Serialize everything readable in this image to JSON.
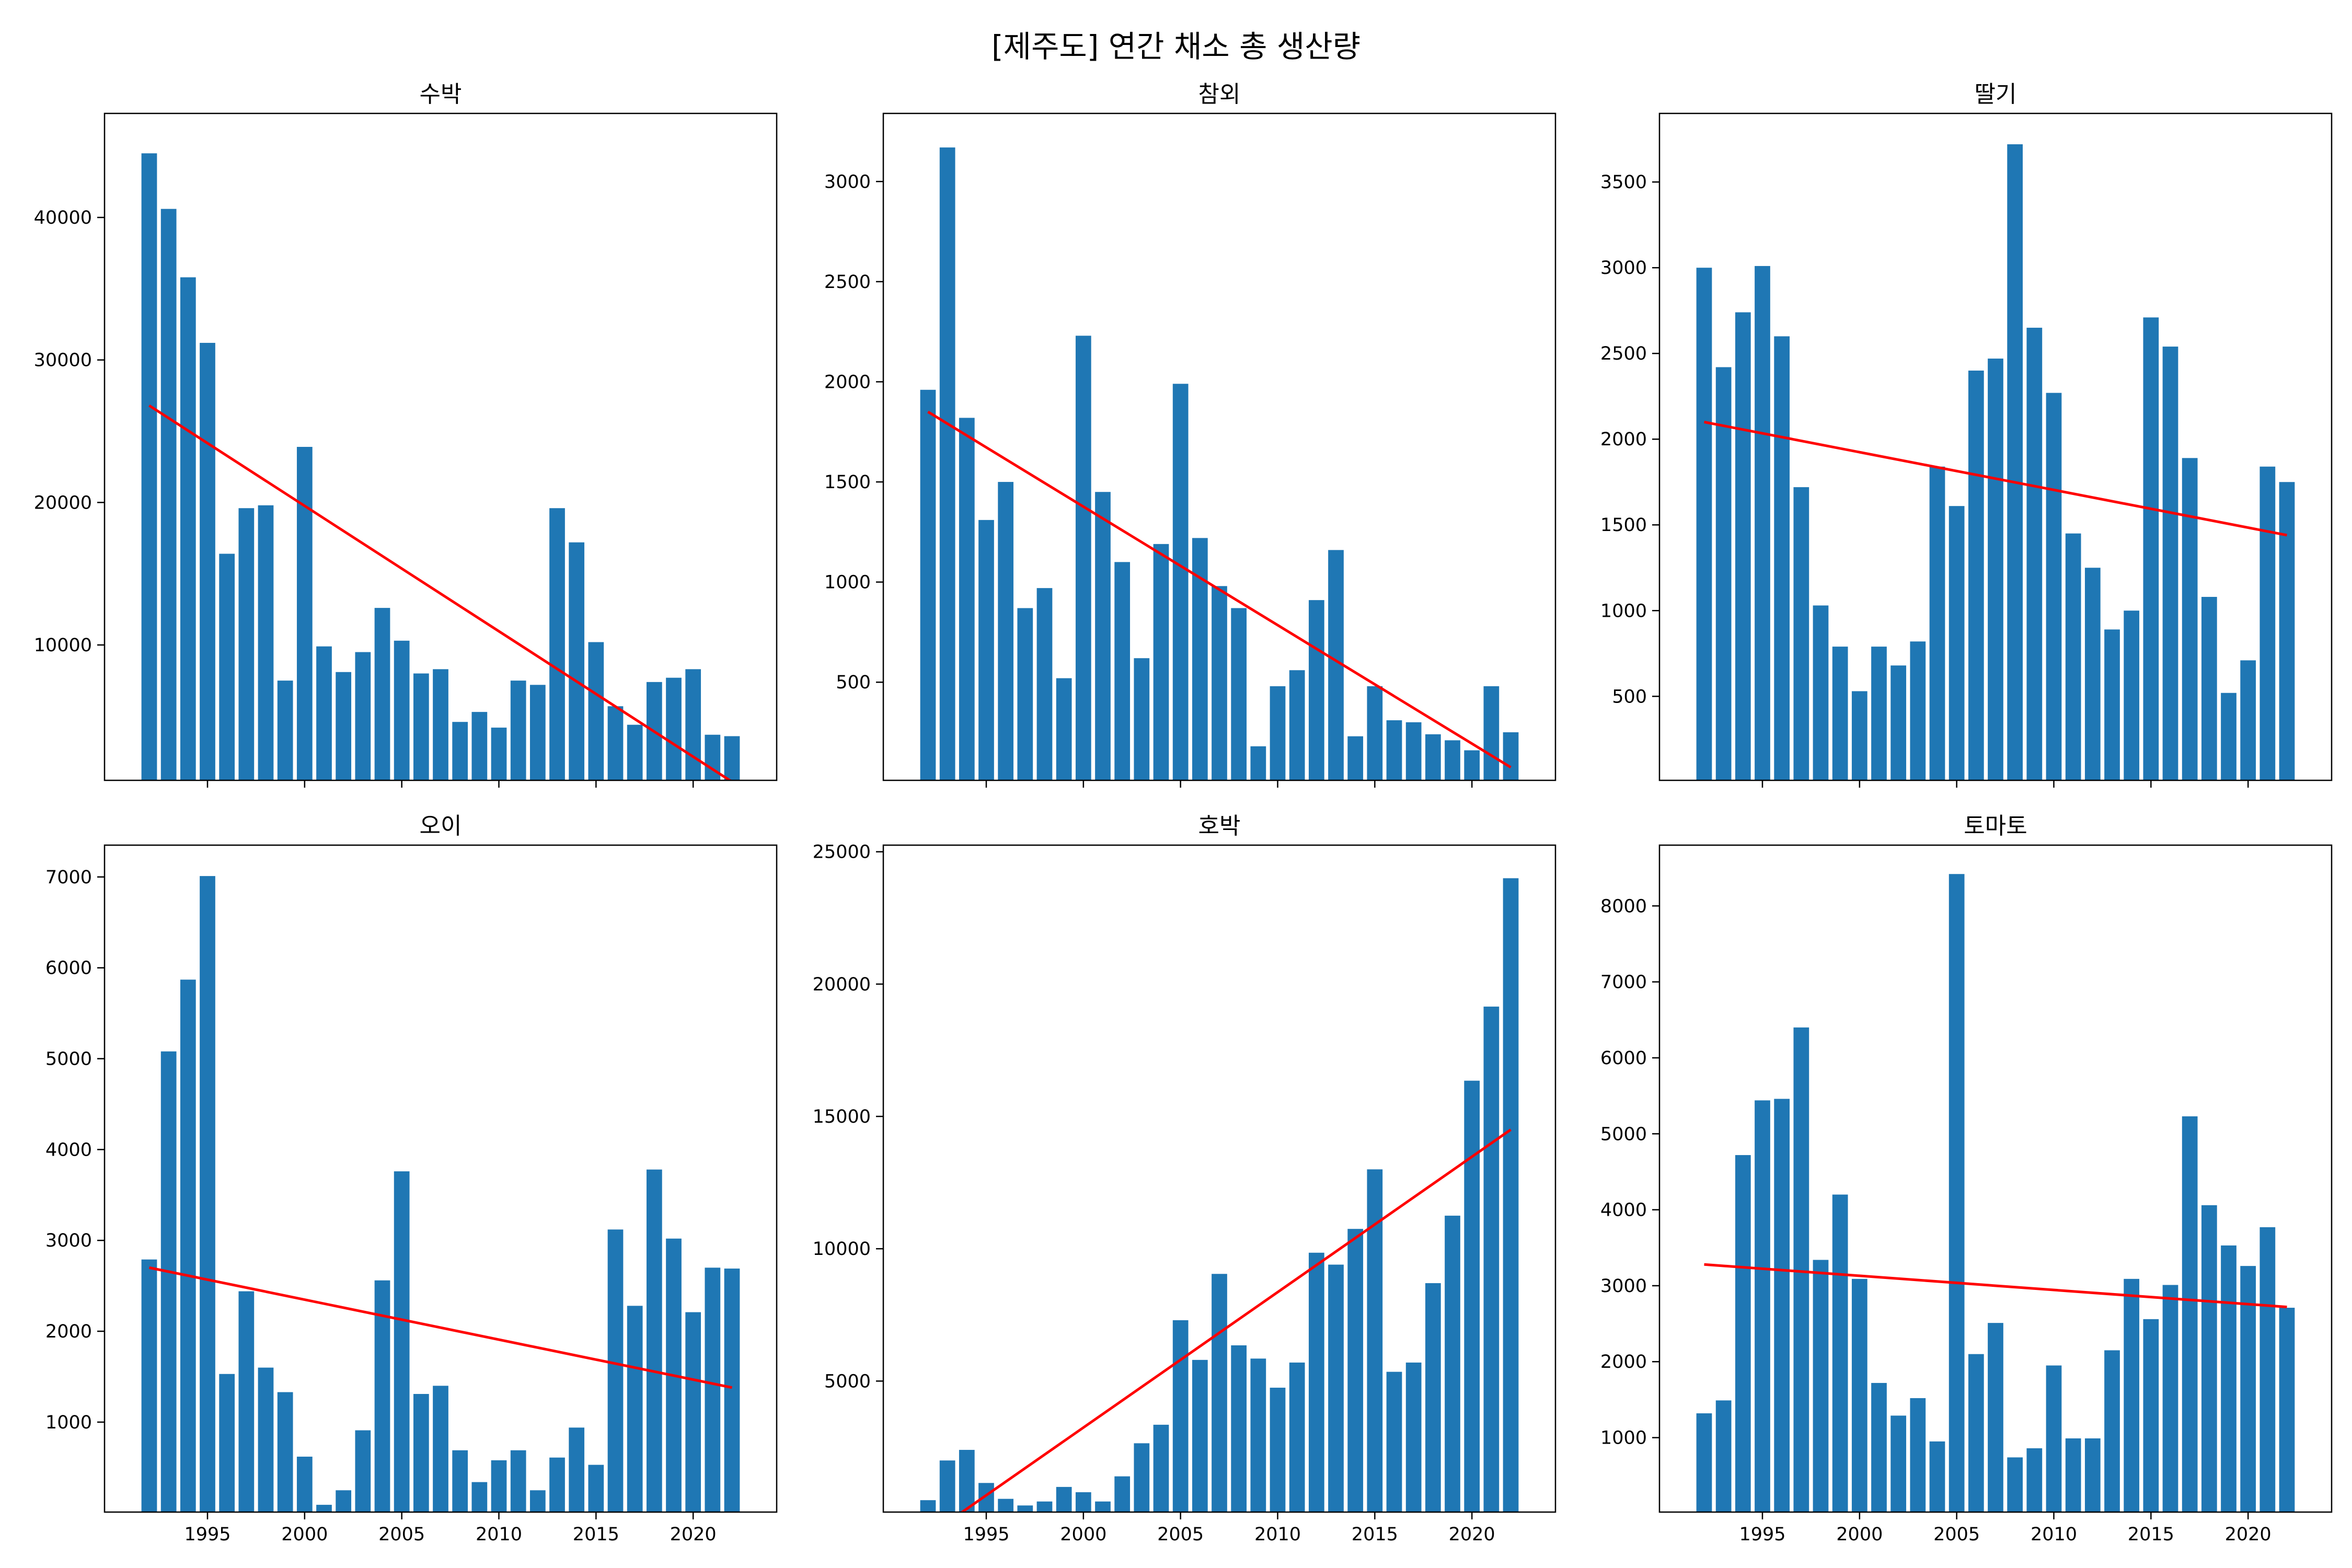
{
  "figure": {
    "title": "[제주도] 연간 채소 총 생산량"
  },
  "colors": {
    "bar": "#1f77b4",
    "trend": "#ff0000",
    "axis": "#000000"
  },
  "chart_data": [
    {
      "type": "bar",
      "title": "수박",
      "xlabel": "",
      "ylabel": "",
      "x": [
        1992,
        1993,
        1994,
        1995,
        1996,
        1997,
        1998,
        1999,
        2000,
        2001,
        2002,
        2003,
        2004,
        2005,
        2006,
        2007,
        2008,
        2009,
        2010,
        2011,
        2012,
        2013,
        2014,
        2015,
        2016,
        2017,
        2018,
        2019,
        2020,
        2021,
        2022
      ],
      "values": [
        44500,
        40600,
        35800,
        31200,
        16400,
        19600,
        19800,
        7500,
        23900,
        9900,
        8100,
        9500,
        12600,
        10300,
        8000,
        8300,
        4600,
        5300,
        4200,
        7500,
        7200,
        19600,
        17200,
        10200,
        5700,
        4400,
        7400,
        7700,
        8300,
        3700,
        3600
      ],
      "trend": [
        26800,
        400
      ],
      "xlim": [
        1989.7,
        2024.3
      ],
      "ylim": [
        500,
        47300
      ],
      "xticks": [
        1995,
        2000,
        2005,
        2010,
        2015,
        2020
      ],
      "show_xticklabels": false,
      "yticks": [
        10000,
        20000,
        30000,
        40000
      ],
      "yticklabels": [
        "10000",
        "20000",
        "30000",
        "40000"
      ]
    },
    {
      "type": "bar",
      "title": "참외",
      "xlabel": "",
      "ylabel": "",
      "x": [
        1992,
        1993,
        1994,
        1995,
        1996,
        1997,
        1998,
        1999,
        2000,
        2001,
        2002,
        2003,
        2004,
        2005,
        2006,
        2007,
        2008,
        2009,
        2010,
        2011,
        2012,
        2013,
        2014,
        2015,
        2016,
        2017,
        2018,
        2019,
        2020,
        2021,
        2022
      ],
      "values": [
        1960,
        3170,
        1820,
        1310,
        1500,
        870,
        970,
        520,
        2230,
        1450,
        1100,
        620,
        1190,
        1990,
        1220,
        980,
        870,
        180,
        480,
        560,
        910,
        1160,
        230,
        480,
        310,
        300,
        240,
        210,
        160,
        480,
        250
      ],
      "trend": [
        1850,
        75
      ],
      "xlim": [
        1989.7,
        2024.3
      ],
      "ylim": [
        10,
        3340
      ],
      "xticks": [
        1995,
        2000,
        2005,
        2010,
        2015,
        2020
      ],
      "show_xticklabels": false,
      "yticks": [
        500,
        1000,
        1500,
        2000,
        2500,
        3000
      ],
      "yticklabels": [
        "500",
        "1000",
        "1500",
        "2000",
        "2500",
        "3000"
      ]
    },
    {
      "type": "bar",
      "title": "딸기",
      "xlabel": "",
      "ylabel": "",
      "x": [
        1992,
        1993,
        1994,
        1995,
        1996,
        1997,
        1998,
        1999,
        2000,
        2001,
        2002,
        2003,
        2004,
        2005,
        2006,
        2007,
        2008,
        2009,
        2010,
        2011,
        2012,
        2013,
        2014,
        2015,
        2016,
        2017,
        2018,
        2019,
        2020,
        2021,
        2022
      ],
      "values": [
        3000,
        2420,
        2740,
        3010,
        2600,
        1720,
        1030,
        790,
        530,
        790,
        680,
        820,
        1840,
        1610,
        2400,
        2470,
        3720,
        2650,
        2270,
        1450,
        1250,
        890,
        1000,
        2710,
        2540,
        1890,
        1080,
        520,
        710,
        1840,
        1750
      ],
      "trend": [
        2100,
        1440
      ],
      "xlim": [
        1989.7,
        2024.3
      ],
      "ylim": [
        10,
        3900
      ],
      "xticks": [
        1995,
        2000,
        2005,
        2010,
        2015,
        2020
      ],
      "show_xticklabels": false,
      "yticks": [
        500,
        1000,
        1500,
        2000,
        2500,
        3000,
        3500
      ],
      "yticklabels": [
        "500",
        "1000",
        "1500",
        "2000",
        "2500",
        "3000",
        "3500"
      ]
    },
    {
      "type": "bar",
      "title": "오이",
      "xlabel": "",
      "ylabel": "",
      "x": [
        1992,
        1993,
        1994,
        1995,
        1996,
        1997,
        1998,
        1999,
        2000,
        2001,
        2002,
        2003,
        2004,
        2005,
        2006,
        2007,
        2008,
        2009,
        2010,
        2011,
        2012,
        2013,
        2014,
        2015,
        2016,
        2017,
        2018,
        2019,
        2020,
        2021,
        2022
      ],
      "values": [
        2790,
        5080,
        5870,
        7010,
        1530,
        2440,
        1600,
        1330,
        620,
        90,
        250,
        910,
        2560,
        3760,
        1310,
        1400,
        690,
        340,
        580,
        690,
        250,
        610,
        940,
        530,
        3120,
        2280,
        3780,
        3020,
        2210,
        2700,
        2690
      ],
      "trend": [
        2700,
        1380
      ],
      "xlim": [
        1989.7,
        2024.3
      ],
      "ylim": [
        10,
        7350
      ],
      "xticks": [
        1995,
        2000,
        2005,
        2010,
        2015,
        2020
      ],
      "show_xticklabels": true,
      "yticks": [
        1000,
        2000,
        3000,
        4000,
        5000,
        6000,
        7000
      ],
      "yticklabels": [
        "1000",
        "2000",
        "3000",
        "4000",
        "5000",
        "6000",
        "7000"
      ]
    },
    {
      "type": "bar",
      "title": "호박",
      "xlabel": "",
      "ylabel": "",
      "x": [
        1992,
        1993,
        1994,
        1995,
        1996,
        1997,
        1998,
        1999,
        2000,
        2001,
        2002,
        2003,
        2004,
        2005,
        2006,
        2007,
        2008,
        2009,
        2010,
        2011,
        2012,
        2013,
        2014,
        2015,
        2016,
        2017,
        2018,
        2019,
        2020,
        2021,
        2022
      ],
      "values": [
        500,
        2000,
        2400,
        1150,
        550,
        300,
        450,
        1000,
        800,
        450,
        1400,
        2650,
        3350,
        7300,
        5800,
        9050,
        6350,
        5850,
        4750,
        5700,
        9850,
        9400,
        10750,
        13000,
        5350,
        5700,
        8700,
        11250,
        16350,
        19150,
        24000
      ],
      "trend": [
        -850,
        14500
      ],
      "xlim": [
        1989.7,
        2024.3
      ],
      "ylim": [
        50,
        25250
      ],
      "xticks": [
        1995,
        2000,
        2005,
        2010,
        2015,
        2020
      ],
      "show_xticklabels": true,
      "yticks": [
        5000,
        10000,
        15000,
        20000,
        25000
      ],
      "yticklabels": [
        "5000",
        "10000",
        "15000",
        "20000",
        "25000"
      ]
    },
    {
      "type": "bar",
      "title": "토마토",
      "xlabel": "",
      "ylabel": "",
      "x": [
        1992,
        1993,
        1994,
        1995,
        1996,
        1997,
        1998,
        1999,
        2000,
        2001,
        2002,
        2003,
        2004,
        2005,
        2006,
        2007,
        2008,
        2009,
        2010,
        2011,
        2012,
        2013,
        2014,
        2015,
        2016,
        2017,
        2018,
        2019,
        2020,
        2021,
        2022
      ],
      "values": [
        1320,
        1490,
        4720,
        5440,
        5460,
        6400,
        3340,
        4200,
        3090,
        1720,
        1290,
        1520,
        950,
        8420,
        2100,
        2510,
        740,
        860,
        1950,
        990,
        990,
        2150,
        3090,
        2560,
        3010,
        5230,
        4060,
        3530,
        3260,
        3770,
        2710
      ],
      "trend": [
        3280,
        2720
      ],
      "xlim": [
        1989.7,
        2024.3
      ],
      "ylim": [
        20,
        8800
      ],
      "xticks": [
        1995,
        2000,
        2005,
        2010,
        2015,
        2020
      ],
      "show_xticklabels": true,
      "yticks": [
        1000,
        2000,
        3000,
        4000,
        5000,
        6000,
        7000,
        8000
      ],
      "yticklabels": [
        "1000",
        "2000",
        "3000",
        "4000",
        "5000",
        "6000",
        "7000",
        "8000"
      ]
    }
  ]
}
